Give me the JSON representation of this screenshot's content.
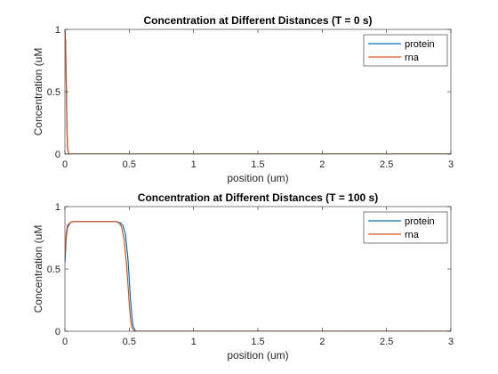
{
  "chart_data": [
    {
      "type": "line",
      "title": "Concentration at Different Distances (T = 0 s)",
      "xlabel": "position (um)",
      "ylabel": "Concentration (uM",
      "xlim": [
        0,
        3
      ],
      "ylim": [
        0,
        1
      ],
      "xticks": [
        "0",
        "0.5",
        "1",
        "1.5",
        "2",
        "2.5",
        "3"
      ],
      "yticks": [
        "0",
        "0.5",
        "1"
      ],
      "grid": false,
      "legend_position": "top-right",
      "series": [
        {
          "name": "protein",
          "color": "#0072BD",
          "x": [
            0,
            0.005,
            0.01,
            0.015,
            0.02,
            0.03,
            3
          ],
          "y": [
            1,
            0.9,
            0.6,
            0.25,
            0.05,
            0,
            0
          ]
        },
        {
          "name": "rna",
          "color": "#D95319",
          "x": [
            0,
            0.005,
            0.01,
            0.015,
            0.02,
            0.03,
            3
          ],
          "y": [
            1,
            0.9,
            0.6,
            0.25,
            0.05,
            0,
            0
          ]
        }
      ]
    },
    {
      "type": "line",
      "title": "Concentration at Different Distances (T = 100 s)",
      "xlabel": "position (um)",
      "ylabel": "Concentration (uM",
      "xlim": [
        0,
        3
      ],
      "ylim": [
        0,
        1
      ],
      "xticks": [
        "0",
        "0.5",
        "1",
        "1.5",
        "2",
        "2.5",
        "3"
      ],
      "yticks": [
        "0",
        "0.5",
        "1"
      ],
      "grid": false,
      "legend_position": "top-right",
      "series": [
        {
          "name": "protein",
          "color": "#0072BD",
          "x": [
            0,
            0.01,
            0.02,
            0.04,
            0.06,
            0.1,
            0.2,
            0.3,
            0.4,
            0.43,
            0.45,
            0.47,
            0.49,
            0.5,
            0.51,
            0.52,
            0.53,
            0.55,
            3
          ],
          "y": [
            0.55,
            0.75,
            0.83,
            0.87,
            0.88,
            0.88,
            0.88,
            0.88,
            0.88,
            0.87,
            0.85,
            0.78,
            0.58,
            0.42,
            0.25,
            0.12,
            0.04,
            0,
            0
          ]
        },
        {
          "name": "rna",
          "color": "#D95319",
          "x": [
            0,
            0.01,
            0.02,
            0.04,
            0.06,
            0.1,
            0.2,
            0.3,
            0.4,
            0.42,
            0.44,
            0.46,
            0.48,
            0.49,
            0.5,
            0.51,
            0.52,
            0.54,
            3
          ],
          "y": [
            0.6,
            0.78,
            0.85,
            0.87,
            0.88,
            0.88,
            0.88,
            0.88,
            0.88,
            0.87,
            0.84,
            0.74,
            0.52,
            0.38,
            0.22,
            0.1,
            0.03,
            0,
            0
          ]
        }
      ]
    }
  ]
}
